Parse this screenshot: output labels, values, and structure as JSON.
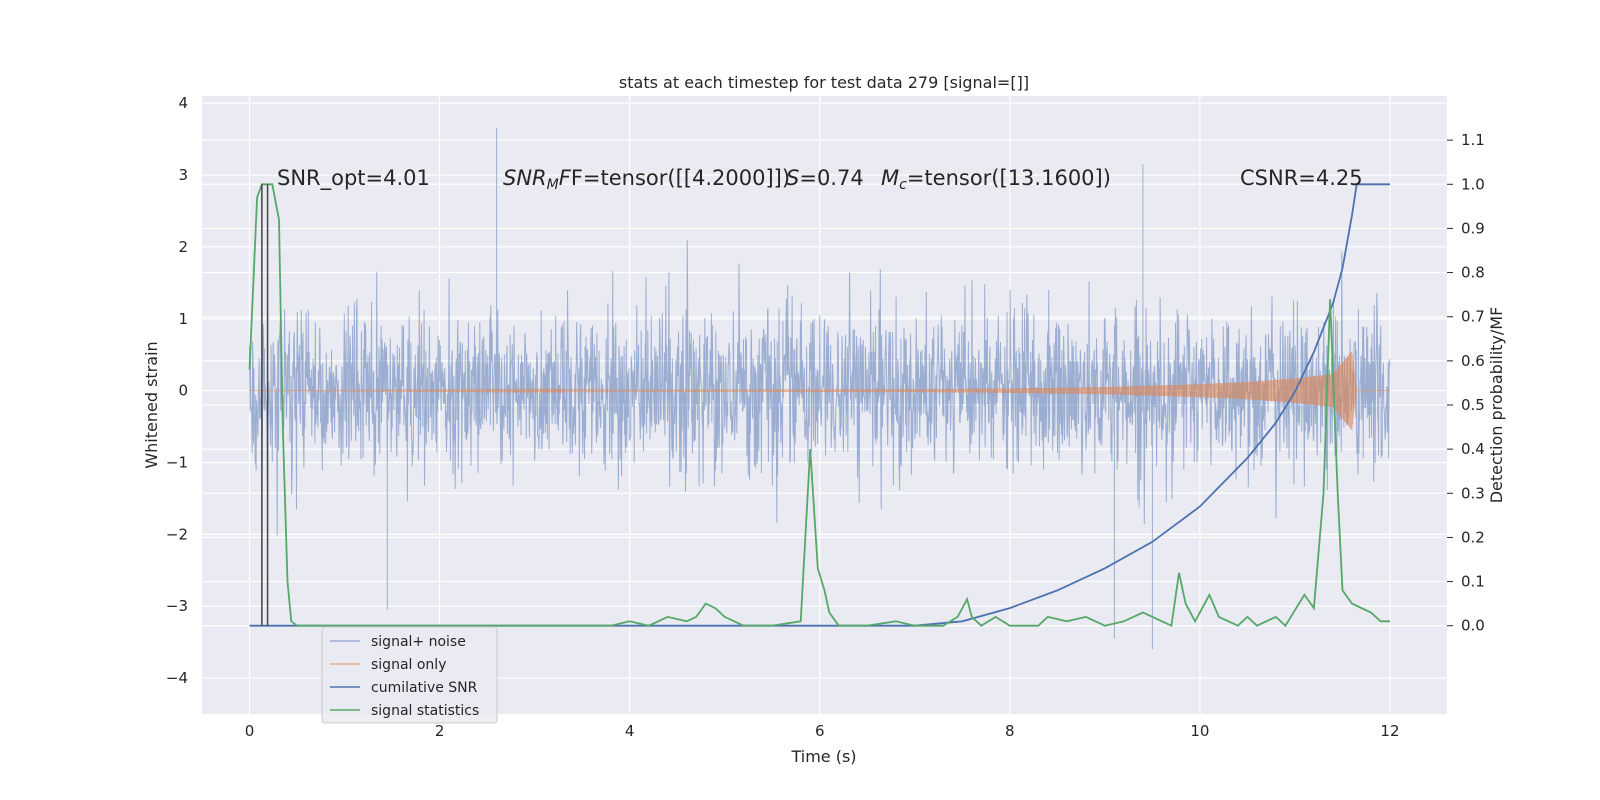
{
  "chart_data": {
    "type": "line",
    "title": "stats at each timestep for test data 279 [signal=[]]",
    "xlabel": "Time (s)",
    "ylabel": "Whitened strain",
    "ylabel_right": "Detection probability/MF",
    "xlim": [
      -0.5,
      12.6
    ],
    "ylim": [
      -4.5,
      4.1
    ],
    "ylim_right": [
      -0.2,
      1.2
    ],
    "x_ticks": [
      0,
      2,
      4,
      6,
      8,
      10,
      12
    ],
    "y_ticks": [
      -4,
      -3,
      -2,
      -1,
      0,
      1,
      2,
      3,
      4
    ],
    "y_ticks_right": [
      0.0,
      0.1,
      0.2,
      0.3,
      0.4,
      0.5,
      0.6,
      0.7,
      0.8,
      0.9,
      1.0,
      1.1
    ],
    "x_tick_labels": [
      "0",
      "2",
      "4",
      "6",
      "8",
      "10",
      "12"
    ],
    "y_tick_labels": [
      "−4",
      "−3",
      "−2",
      "−1",
      "0",
      "1",
      "2",
      "3",
      "4"
    ],
    "y_tick_labels_right": [
      "0.0",
      "0.1",
      "0.2",
      "0.3",
      "0.4",
      "0.5",
      "0.6",
      "0.7",
      "0.8",
      "0.9",
      "1.0",
      "1.1"
    ],
    "grid": true,
    "legend_position": "lower-left",
    "annotations": {
      "snr_opt": "SNR_opt=4.01",
      "snr_mf_prefix": "SNR",
      "snr_mf_sub": "M",
      "snr_mf_rest": "F=tensor([[4.2000]])",
      "s_label": "S",
      "s_value": "=0.74",
      "mc_label": "M",
      "mc_sub": "c",
      "mc_value": "=tensor([13.1600])",
      "csnr": "CSNR=4.25"
    },
    "vertical_lines": [
      0.13,
      0.19
    ],
    "series": [
      {
        "name": "signal+ noise",
        "color": "#4c72b0",
        "axis": "left",
        "kind": "noise",
        "x_range": [
          0,
          12
        ],
        "amplitude_std": 0.55,
        "peak_values": [
          [
            2.6,
            3.65
          ],
          [
            9.4,
            3.15
          ],
          [
            1.45,
            -3.05
          ],
          [
            9.5,
            -3.6
          ],
          [
            9.1,
            -3.45
          ]
        ]
      },
      {
        "name": "signal only",
        "color": "#dd8452",
        "axis": "left",
        "kind": "chirp",
        "x_range": [
          0,
          11.65
        ],
        "envelope": [
          [
            0,
            0.0
          ],
          [
            7.0,
            0.02
          ],
          [
            8.0,
            0.03
          ],
          [
            9.0,
            0.05
          ],
          [
            10.0,
            0.09
          ],
          [
            10.5,
            0.12
          ],
          [
            11.0,
            0.17
          ],
          [
            11.4,
            0.23
          ],
          [
            11.6,
            0.55
          ],
          [
            11.65,
            0.0
          ]
        ]
      },
      {
        "name": "cumilative SNR",
        "color": "#4c72b0",
        "axis": "right",
        "kind": "line",
        "points": [
          [
            0,
            0.0
          ],
          [
            7.0,
            0.0
          ],
          [
            7.5,
            0.01
          ],
          [
            8.0,
            0.04
          ],
          [
            8.5,
            0.08
          ],
          [
            9.0,
            0.13
          ],
          [
            9.5,
            0.19
          ],
          [
            10.0,
            0.27
          ],
          [
            10.5,
            0.38
          ],
          [
            10.8,
            0.46
          ],
          [
            11.0,
            0.53
          ],
          [
            11.2,
            0.62
          ],
          [
            11.4,
            0.73
          ],
          [
            11.5,
            0.81
          ],
          [
            11.6,
            0.93
          ],
          [
            11.65,
            1.0
          ],
          [
            12.0,
            1.0
          ]
        ]
      },
      {
        "name": "signal statistics",
        "color": "#55a868",
        "axis": "right",
        "kind": "line",
        "points": [
          [
            0.0,
            0.58
          ],
          [
            0.08,
            0.97
          ],
          [
            0.13,
            1.0
          ],
          [
            0.24,
            1.0
          ],
          [
            0.31,
            0.92
          ],
          [
            0.35,
            0.45
          ],
          [
            0.4,
            0.1
          ],
          [
            0.44,
            0.01
          ],
          [
            0.5,
            0.0
          ],
          [
            1.0,
            0.0
          ],
          [
            2.0,
            0.0
          ],
          [
            3.0,
            0.0
          ],
          [
            3.8,
            0.0
          ],
          [
            4.0,
            0.01
          ],
          [
            4.2,
            0.0
          ],
          [
            4.3,
            0.01
          ],
          [
            4.4,
            0.02
          ],
          [
            4.6,
            0.01
          ],
          [
            4.7,
            0.02
          ],
          [
            4.8,
            0.05
          ],
          [
            4.9,
            0.04
          ],
          [
            5.0,
            0.02
          ],
          [
            5.2,
            0.0
          ],
          [
            5.5,
            0.0
          ],
          [
            5.8,
            0.01
          ],
          [
            5.9,
            0.4
          ],
          [
            5.98,
            0.13
          ],
          [
            6.05,
            0.08
          ],
          [
            6.1,
            0.03
          ],
          [
            6.2,
            0.0
          ],
          [
            6.5,
            0.0
          ],
          [
            6.8,
            0.01
          ],
          [
            7.0,
            0.0
          ],
          [
            7.3,
            0.0
          ],
          [
            7.45,
            0.02
          ],
          [
            7.55,
            0.06
          ],
          [
            7.6,
            0.02
          ],
          [
            7.7,
            0.0
          ],
          [
            7.85,
            0.02
          ],
          [
            8.0,
            0.0
          ],
          [
            8.3,
            0.0
          ],
          [
            8.4,
            0.02
          ],
          [
            8.6,
            0.01
          ],
          [
            8.8,
            0.02
          ],
          [
            9.0,
            0.0
          ],
          [
            9.2,
            0.01
          ],
          [
            9.4,
            0.03
          ],
          [
            9.6,
            0.01
          ],
          [
            9.7,
            0.0
          ],
          [
            9.78,
            0.12
          ],
          [
            9.85,
            0.05
          ],
          [
            9.95,
            0.01
          ],
          [
            10.1,
            0.07
          ],
          [
            10.2,
            0.02
          ],
          [
            10.4,
            0.0
          ],
          [
            10.5,
            0.02
          ],
          [
            10.6,
            0.0
          ],
          [
            10.8,
            0.02
          ],
          [
            10.9,
            0.0
          ],
          [
            11.1,
            0.07
          ],
          [
            11.2,
            0.04
          ],
          [
            11.3,
            0.3
          ],
          [
            11.37,
            0.74
          ],
          [
            11.45,
            0.3
          ],
          [
            11.5,
            0.08
          ],
          [
            11.6,
            0.05
          ],
          [
            11.8,
            0.03
          ],
          [
            11.9,
            0.01
          ],
          [
            12.0,
            0.01
          ]
        ]
      }
    ]
  }
}
